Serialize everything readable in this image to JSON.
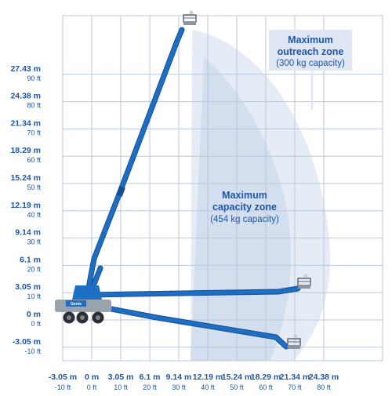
{
  "colors": {
    "grid": "#b9c7dd",
    "label": "#1f56a8",
    "boom": "#1e6ec4",
    "boom_dark": "#134f94",
    "zone_outer": "#e6ecf6",
    "zone_inner": "#d3deee",
    "chassis": "#9aa3ad",
    "box_fill": "#dfe7f4"
  },
  "chart_data": {
    "type": "diagram",
    "x_ticks": [
      {
        "m": "-3.05 m",
        "ft": "-10 ft",
        "value_ft": -10
      },
      {
        "m": "0 m",
        "ft": "0 ft",
        "value_ft": 0
      },
      {
        "m": "3.05 m",
        "ft": "10 ft",
        "value_ft": 10
      },
      {
        "m": "6.1 m",
        "ft": "20 ft",
        "value_ft": 20
      },
      {
        "m": "9.14 m",
        "ft": "30 ft",
        "value_ft": 30
      },
      {
        "m": "12.19 m",
        "ft": "40 ft",
        "value_ft": 40
      },
      {
        "m": "15.24 m",
        "ft": "50 ft",
        "value_ft": 50
      },
      {
        "m": "18.29 m",
        "ft": "60 ft",
        "value_ft": 60
      },
      {
        "m": "21.34 m",
        "ft": "70 ft",
        "value_ft": 70
      },
      {
        "m": "24.38 m",
        "ft": "80 ft",
        "value_ft": 80
      }
    ],
    "y_ticks": [
      {
        "m": "27.43 m",
        "ft": "90 ft",
        "value_ft": 90
      },
      {
        "m": "24.38 m",
        "ft": "80 ft",
        "value_ft": 80
      },
      {
        "m": "21.34 m",
        "ft": "70 ft",
        "value_ft": 70
      },
      {
        "m": "18.29 m",
        "ft": "60 ft",
        "value_ft": 60
      },
      {
        "m": "15.24 m",
        "ft": "50 ft",
        "value_ft": 50
      },
      {
        "m": "12.19 m",
        "ft": "40 ft",
        "value_ft": 40
      },
      {
        "m": "9.14 m",
        "ft": "30 ft",
        "value_ft": 30
      },
      {
        "m": "6.1 m",
        "ft": "20 ft",
        "value_ft": 20
      },
      {
        "m": "3.05 m",
        "ft": "10 ft",
        "value_ft": 10
      },
      {
        "m": "0 m",
        "ft": "0 ft",
        "value_ft": 0
      },
      {
        "m": "-3.05 m",
        "ft": "-10 ft",
        "value_ft": -10
      }
    ],
    "zones": {
      "outreach": {
        "title_line1": "Maximum",
        "title_line2": "outreach zone",
        "capacity": "(300 kg capacity)"
      },
      "capacity": {
        "title_line1": "Maximum",
        "title_line2": "capacity zone",
        "capacity": "(454 kg capacity)"
      }
    },
    "machine": {
      "brand": "Genie"
    }
  }
}
